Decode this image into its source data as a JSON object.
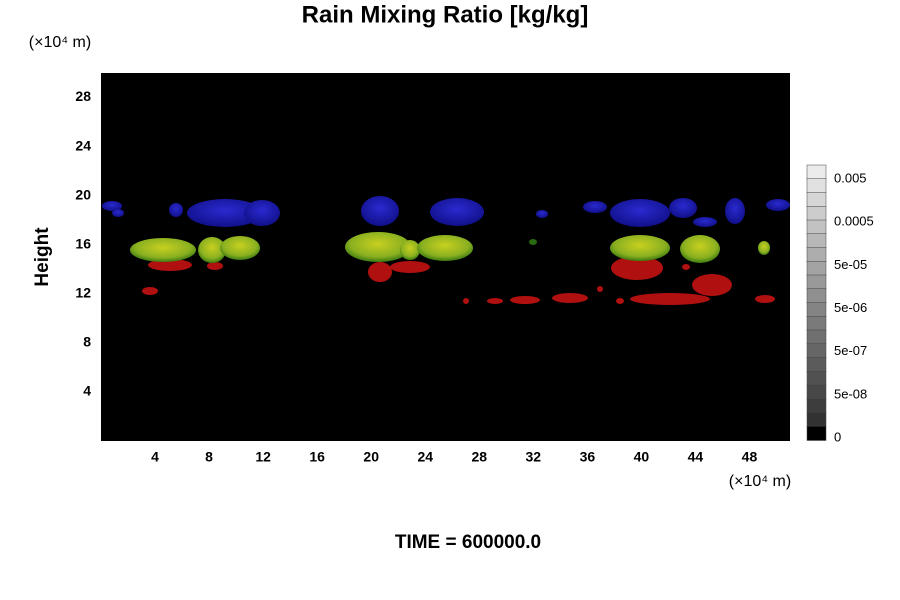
{
  "chart_data": {
    "type": "field",
    "title": "Rain Mixing Ratio [kg/kg]",
    "y_unit": "(×10⁴ m)",
    "x_unit": "(×10⁴ m)",
    "ylabel": "Height",
    "time_label": "TIME = 600000.0",
    "xlim": [
      0,
      51
    ],
    "xticks": [
      4,
      8,
      12,
      16,
      20,
      24,
      28,
      32,
      36,
      40,
      44,
      48
    ],
    "ylim": [
      0,
      30
    ],
    "yticks": [
      4,
      8,
      12,
      16,
      20,
      24,
      28
    ],
    "colorbar_labels": [
      "0.005",
      "0.0005",
      "5e-05",
      "5e-06",
      "5e-07",
      "5e-08",
      "0"
    ]
  }
}
